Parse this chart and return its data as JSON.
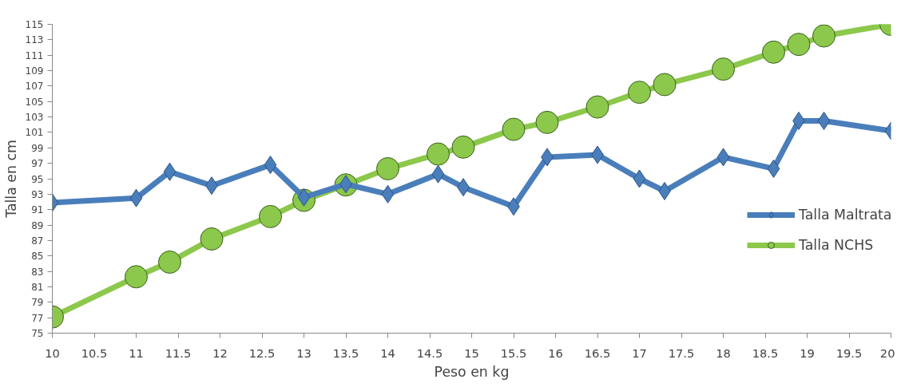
{
  "chart_data": {
    "type": "line",
    "xlabel": "Peso en kg",
    "ylabel": "Talla en cm",
    "xlim": [
      10,
      20
    ],
    "xticks": [
      10,
      10.5,
      11,
      11.5,
      12,
      12.5,
      13,
      13.5,
      14,
      14.5,
      15,
      15.5,
      16,
      16.5,
      17,
      17.5,
      18,
      18.5,
      19,
      19.5,
      20
    ],
    "ylim": [
      75,
      115
    ],
    "yticks": [
      75,
      77,
      79,
      81,
      83,
      85,
      87,
      89,
      91,
      93,
      95,
      97,
      99,
      101,
      103,
      105,
      107,
      109,
      111,
      113,
      115
    ],
    "grid": false,
    "legend": "right",
    "series": [
      {
        "name": "Talla Maltrata",
        "color": "#4a7ebb",
        "marker": "diamond",
        "x": [
          10,
          11,
          11.4,
          11.9,
          12.6,
          13,
          13.5,
          14,
          14.6,
          14.9,
          15.5,
          15.9,
          16.5,
          17,
          17.3,
          18,
          18.6,
          18.9,
          19.2,
          20
        ],
        "values": [
          91.9,
          92.5,
          95.9,
          94.1,
          96.8,
          92.6,
          94.3,
          93.0,
          95.6,
          93.9,
          91.4,
          97.8,
          98.1,
          95.0,
          93.4,
          97.8,
          96.3,
          102.5,
          102.5,
          101.2
        ]
      },
      {
        "name": "Talla NCHS",
        "color": "#8cc84b",
        "marker": "circle",
        "x": [
          10,
          11,
          11.4,
          11.9,
          12.6,
          13,
          13.5,
          14,
          14.6,
          14.9,
          15.5,
          15.9,
          16.5,
          17,
          17.3,
          18,
          18.6,
          18.9,
          19.2,
          20
        ],
        "values": [
          77.1,
          82.3,
          84.2,
          87.2,
          90.1,
          92.2,
          94.2,
          96.3,
          98.2,
          99.1,
          101.4,
          102.3,
          104.3,
          106.2,
          107.2,
          109.2,
          111.4,
          112.4,
          113.5,
          115.0
        ]
      }
    ]
  }
}
